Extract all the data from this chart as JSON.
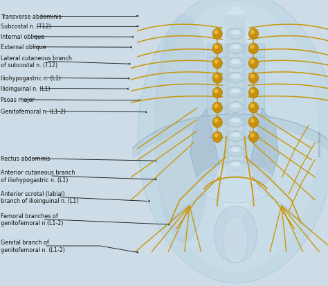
{
  "fig_width": 4.74,
  "fig_height": 4.14,
  "bg_color": "#cddce6",
  "labels_left": [
    {
      "text": "Transverse abdominis",
      "yt": 0.942,
      "xt": 0.002,
      "ya": 0.942,
      "xa": 0.415
    },
    {
      "text": "Subcostal n. (T12)",
      "yt": 0.906,
      "xt": 0.002,
      "ya": 0.906,
      "xa": 0.415
    },
    {
      "text": "Internal oblique",
      "yt": 0.87,
      "xt": 0.002,
      "ya": 0.869,
      "xa": 0.4
    },
    {
      "text": "External oblique",
      "yt": 0.834,
      "xt": 0.002,
      "ya": 0.833,
      "xa": 0.395
    },
    {
      "text": "Lateral cutaneous branch\nof subcostal n. (T12)",
      "yt": 0.784,
      "xt": 0.002,
      "ya": 0.775,
      "xa": 0.39
    },
    {
      "text": "Iliohypogastric n. (L1)",
      "yt": 0.726,
      "xt": 0.002,
      "ya": 0.724,
      "xa": 0.388
    },
    {
      "text": "Ilioinguinal n. (L1)",
      "yt": 0.69,
      "xt": 0.002,
      "ya": 0.688,
      "xa": 0.385
    },
    {
      "text": "Psoas major",
      "yt": 0.65,
      "xt": 0.002,
      "ya": 0.648,
      "xa": 0.42
    },
    {
      "text": "Genitofemoral n. (L1-2)",
      "yt": 0.61,
      "xt": 0.002,
      "ya": 0.607,
      "xa": 0.44
    },
    {
      "text": "Rectus abdominis",
      "yt": 0.445,
      "xt": 0.002,
      "ya": 0.437,
      "xa": 0.47
    },
    {
      "text": "Anterior cutaneous branch\nof iliohypogastric n. (L1)",
      "yt": 0.384,
      "xt": 0.002,
      "ya": 0.372,
      "xa": 0.47
    },
    {
      "text": "Anterior scrotal (labial)\nbranch of ilioinguinal n. (L1)",
      "yt": 0.31,
      "xt": 0.002,
      "ya": 0.296,
      "xa": 0.45
    },
    {
      "text": "Femoral branches of\ngenitofemoral n (L1-2)",
      "yt": 0.233,
      "xt": 0.002,
      "ya": 0.215,
      "xa": 0.51
    },
    {
      "text": "Genital branch of\ngenitofemoral n. (L1-2)",
      "yt": 0.14,
      "xt": 0.002,
      "ya": 0.118,
      "xa": 0.415
    }
  ],
  "nerve_color": "#c8960a",
  "text_color": "#111111",
  "line_color": "#1a1a1a",
  "text_fontsize": 5.8,
  "line_width": 0.65
}
